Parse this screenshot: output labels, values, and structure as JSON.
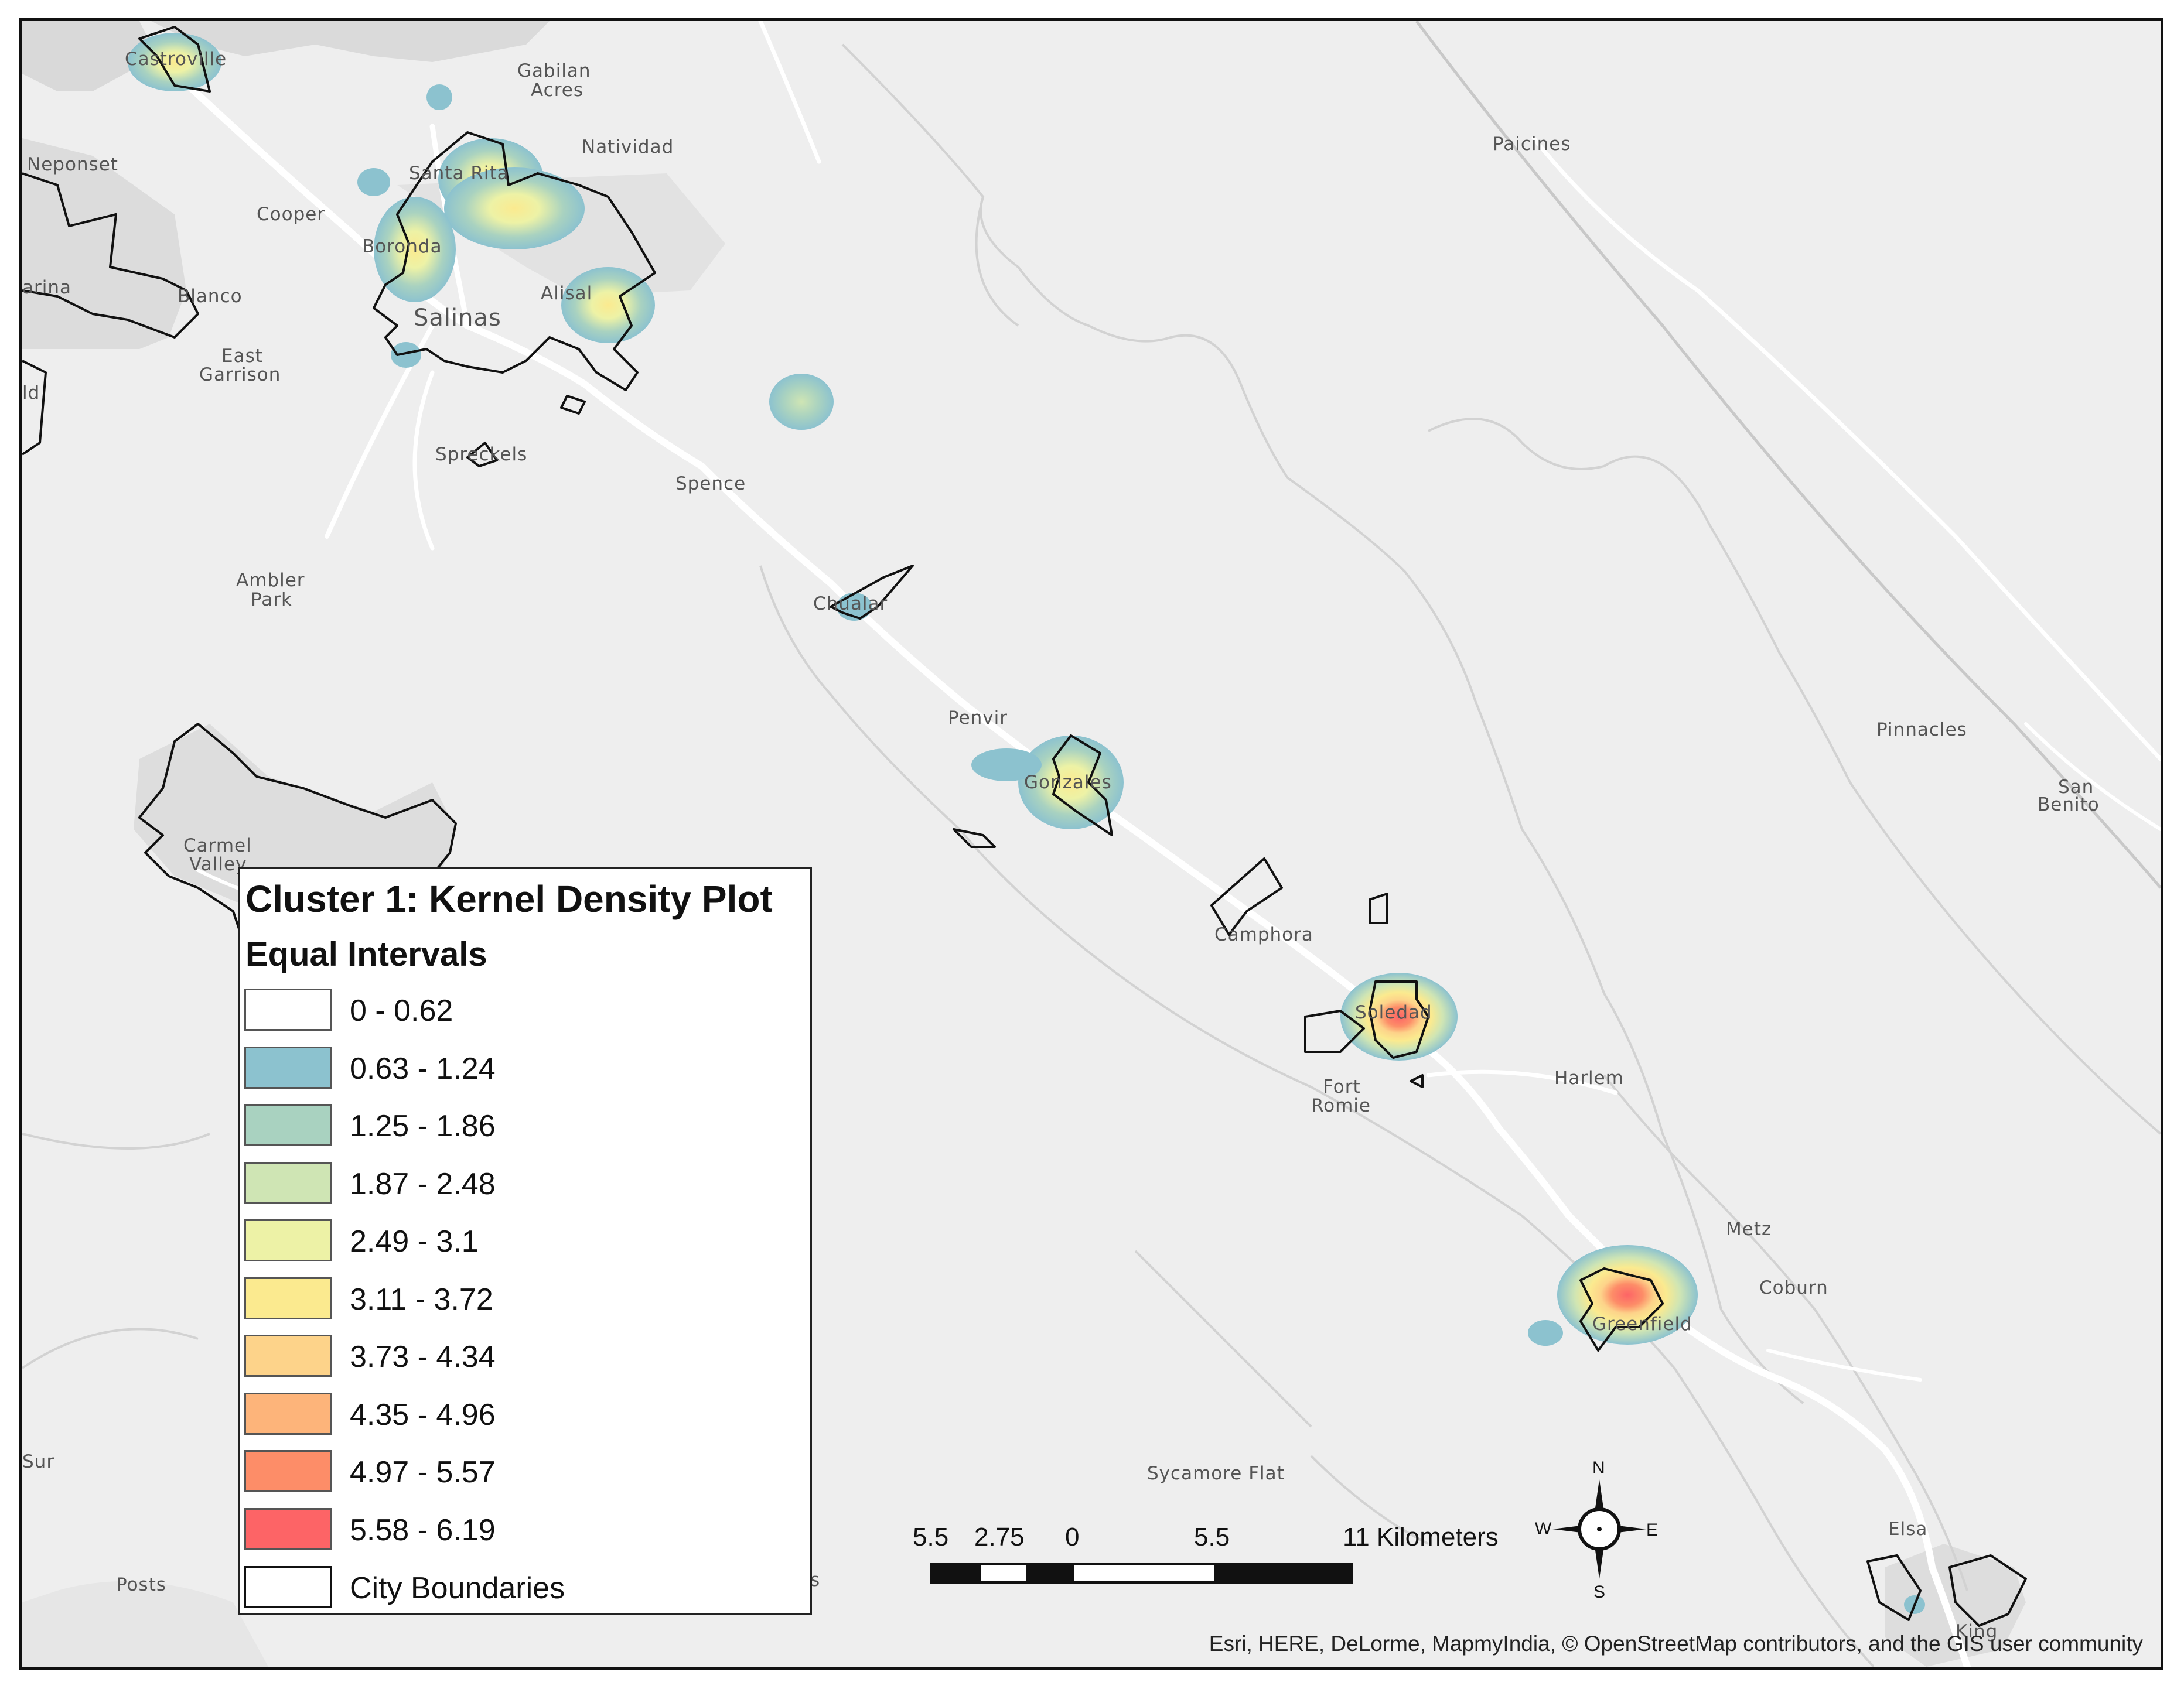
{
  "legend": {
    "title": "Cluster 1: Kernel Density Plot",
    "subtitle": "Equal Intervals",
    "items": [
      {
        "label": "0 - 0.62",
        "color": "#ffffff"
      },
      {
        "label": "0.63 - 1.24",
        "color": "#8cc2cf"
      },
      {
        "label": "1.25 - 1.86",
        "color": "#a9d2c0"
      },
      {
        "label": "1.87 - 2.48",
        "color": "#cfe5b4"
      },
      {
        "label": "2.49 - 3.1",
        "color": "#edf2a6"
      },
      {
        "label": "3.11 - 3.72",
        "color": "#fbea8f"
      },
      {
        "label": "3.73 - 4.34",
        "color": "#fdd38a"
      },
      {
        "label": "4.35 - 4.96",
        "color": "#fdb47a"
      },
      {
        "label": "4.97 - 5.57",
        "color": "#fd8d68"
      },
      {
        "label": "5.58 - 6.19",
        "color": "#fd6466"
      }
    ],
    "boundary_label": "City Boundaries"
  },
  "scale_bar": {
    "labels": [
      "5.5",
      "2.75",
      "0",
      "5.5",
      "11 Kilometers"
    ]
  },
  "compass": {
    "n": "N",
    "s": "S",
    "e": "E",
    "w": "W"
  },
  "credits": "Esri, HERE, DeLorme, MapmyIndia, © OpenStreetMap contributors, and the GIS user community",
  "places": {
    "castroville": "Castroville",
    "gabilan_acres_1": "Gabilan",
    "gabilan_acres_2": "Acres",
    "natividad": "Natividad",
    "paicines": "Paicines",
    "neponset": "Neponset",
    "santa_rita": "Santa Rita",
    "cooper": "Cooper",
    "boronda": "Boronda",
    "marina": "arina",
    "blanco": "Blanco",
    "alisal": "Alisal",
    "salinas": "Salinas",
    "east_garrison_1": "East",
    "east_garrison_2": "Garrison",
    "ld": "ld",
    "spreckels": "Spreckels",
    "spence": "Spence",
    "ambler_park_1": "Ambler",
    "ambler_park_2": "Park",
    "chualar": "Chualar",
    "penvir": "Penvir",
    "gonzales": "Gonzales",
    "pinnacles": "Pinnacles",
    "san_benito_1": "San",
    "san_benito_2": "Benito",
    "carmel_valley_1": "Carmel",
    "carmel_valley_2": "Valley",
    "camphora": "Camphora",
    "soledad": "Soledad",
    "fort_romie_1": "Fort",
    "fort_romie_2": "Romie",
    "harlem": "Harlem",
    "metz": "Metz",
    "coburn": "Coburn",
    "greenfield": "Greenfield",
    "sur": "Sur",
    "posts": "Posts",
    "sycamore_flat": "Sycamore Flat",
    "elsa": "Elsa",
    "king": "King",
    "s_partial": "s"
  }
}
